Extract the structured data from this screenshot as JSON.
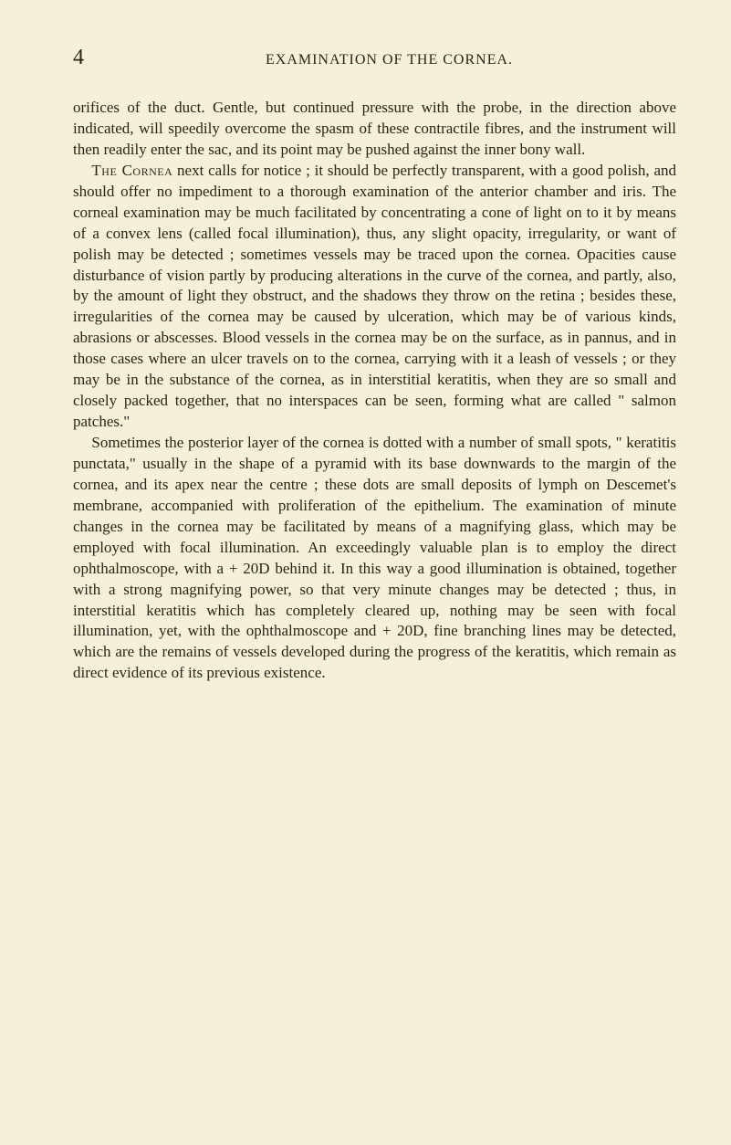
{
  "page_number": "4",
  "header_title": "EXAMINATION OF THE CORNEA.",
  "paragraphs": {
    "p1": "orifices of the duct.  Gentle, but continued pressure with the probe, in the direction above indicated, will speedily overcome the spasm of these contractile fibres, and the instrument will then readily enter the sac, and its point may be pushed against the inner bony wall.",
    "p2_lead": "The Cornea",
    "p2_rest": " next calls for notice ; it should be perfectly transparent, with a good polish, and should offer no impediment to a thorough examination of the anterior chamber and iris.  The corneal examination may be much facilitated by concentrating a cone of light on to it by means of a convex lens (called focal illumination), thus, any slight opacity, irregularity, or want of polish may be detected ; sometimes vessels may be traced upon the cornea.  Opacities cause disturbance of vision partly by producing alterations in the curve of the cornea, and partly, also, by the amount of light they obstruct, and the shadows they throw on the retina ; besides these, irregularities of the cornea may be caused by ulceration, which may be of various kinds, abrasions or abscesses.  Blood vessels in the cornea may be on the surface, as in pannus, and in those cases where an ulcer travels on to the cornea, carrying with it a leash of vessels ; or they may be in the substance of the cornea, as in interstitial keratitis, when they are so small and closely packed together, that no interspaces can be seen, forming what are called \" salmon patches.\"",
    "p3": "Sometimes the posterior layer of the cornea is dotted with a number of small spots, \" keratitis punctata,\" usually in the shape of a pyramid with its base downwards to the margin of the cornea, and its apex near the centre ; these dots are small deposits of lymph on Descemet's membrane, accompanied with proliferation of the epithelium.  The examination of minute changes in the cornea may be facilitated by means of a magnifying glass, which may be employed with focal illumination.  An exceedingly valuable plan is to employ the direct ophthalmoscope, with a + 20D behind it.  In this way a good illumination is obtained, together with a strong magnifying power, so that very minute changes may be detected ; thus, in interstitial keratitis which has completely cleared up, nothing may be seen with focal illumination, yet, with the ophthalmoscope and + 20D, fine branching lines may be detected, which are the remains of vessels developed during the progress of the keratitis, which remain as direct evidence of its previous existence."
  },
  "colors": {
    "background": "#f5f0d8",
    "text": "#2a2418"
  },
  "typography": {
    "body_font_size": 17,
    "header_font_size": 16,
    "page_number_font_size": 24,
    "line_height": 1.35,
    "font_family": "Georgia, Times New Roman, serif"
  }
}
